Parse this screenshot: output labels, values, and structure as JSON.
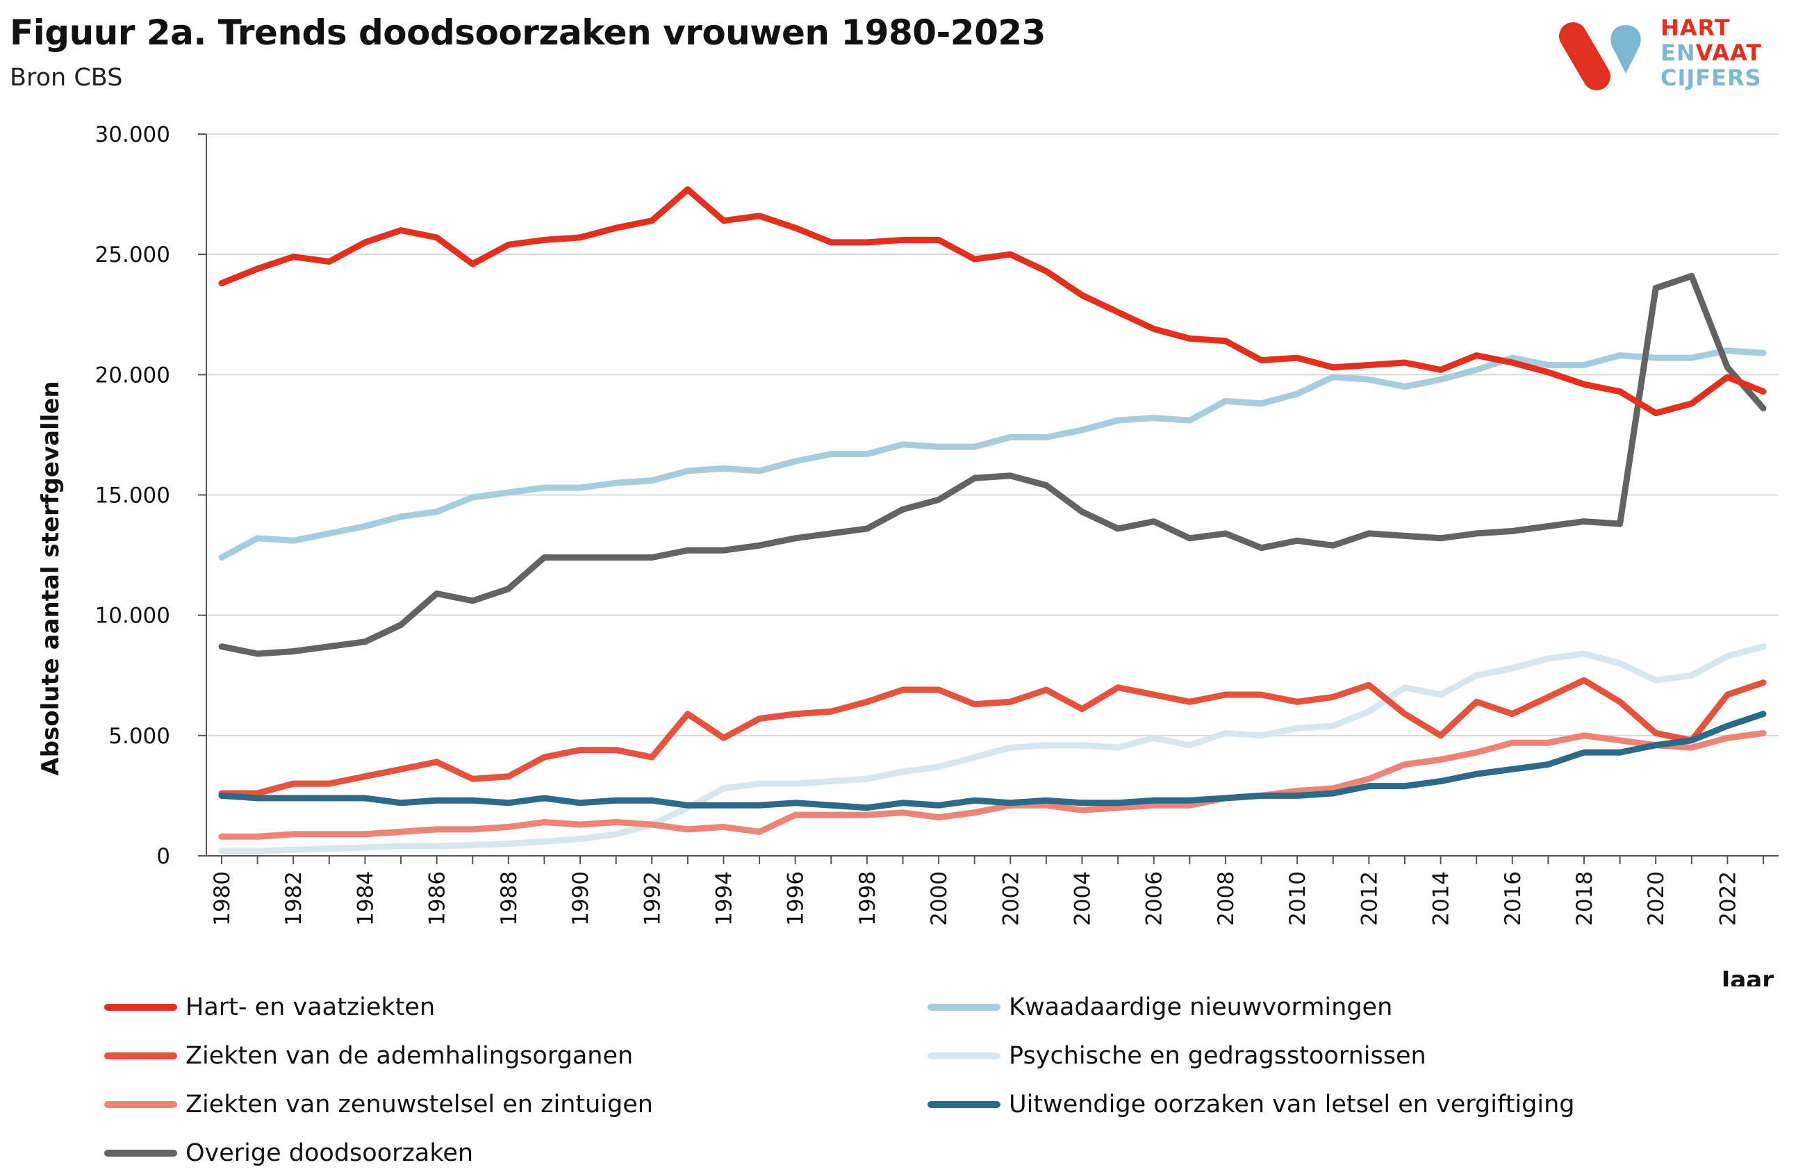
{
  "header": {
    "title": "Figuur 2a. Trends doodsoorzaken vrouwen 1980-2023",
    "subtitle": "Bron CBS"
  },
  "logo": {
    "line1": "HART",
    "line2a": "EN",
    "line2b": "VAAT",
    "line3": "CIJFERS",
    "colors": {
      "red": "#e2301f",
      "blue": "#7db8d3"
    }
  },
  "chart_data": {
    "type": "line",
    "title": "Figuur 2a. Trends doodsoorzaken vrouwen 1980-2023",
    "subtitle": "Bron CBS",
    "xlabel": "Jaar",
    "ylabel": "Absolute aantal sterfgevallen",
    "ylim": [
      0,
      30000
    ],
    "xlim": [
      1980,
      2023
    ],
    "yticks": [
      0,
      5000,
      10000,
      15000,
      20000,
      25000,
      30000
    ],
    "ytick_labels": [
      "0",
      "5.000",
      "10.000",
      "15.000",
      "20.000",
      "25.000",
      "30.000"
    ],
    "xtick_labels": [
      "1980",
      "1982",
      "1984",
      "1986",
      "1988",
      "1990",
      "1992",
      "1994",
      "1996",
      "1998",
      "2000",
      "2002",
      "2004",
      "2006",
      "2008",
      "2010",
      "2012",
      "2014",
      "2016",
      "2018",
      "2020",
      "2022"
    ],
    "grid": "horizontal",
    "legend_position": "bottom",
    "x": [
      1980,
      1981,
      1982,
      1983,
      1984,
      1985,
      1986,
      1987,
      1988,
      1989,
      1990,
      1991,
      1992,
      1993,
      1994,
      1995,
      1996,
      1997,
      1998,
      1999,
      2000,
      2001,
      2002,
      2003,
      2004,
      2005,
      2006,
      2007,
      2008,
      2009,
      2010,
      2011,
      2012,
      2013,
      2014,
      2015,
      2016,
      2017,
      2018,
      2019,
      2020,
      2021,
      2022,
      2023
    ],
    "series": [
      {
        "name": "Hart- en vaatziekten",
        "color": "#e2301f",
        "values": [
          23800,
          24400,
          24900,
          24700,
          25500,
          26000,
          25700,
          24600,
          25400,
          25600,
          25700,
          26100,
          26400,
          27700,
          26400,
          26600,
          26100,
          25500,
          25500,
          25600,
          25600,
          24800,
          25000,
          24300,
          23300,
          22600,
          21900,
          21500,
          21400,
          20600,
          20700,
          20300,
          20400,
          20500,
          20200,
          20800,
          20500,
          20100,
          19600,
          19300,
          18400,
          18800,
          19900,
          19300
        ]
      },
      {
        "name": "Kwaadaardige nieuwvormingen",
        "color": "#a7ccdf",
        "values": [
          12400,
          13200,
          13100,
          13400,
          13700,
          14100,
          14300,
          14900,
          15100,
          15300,
          15300,
          15500,
          15600,
          16000,
          16100,
          16000,
          16400,
          16700,
          16700,
          17100,
          17000,
          17000,
          17400,
          17400,
          17700,
          18100,
          18200,
          18100,
          18900,
          18800,
          19200,
          19900,
          19800,
          19500,
          19800,
          20200,
          20700,
          20400,
          20400,
          20800,
          20700,
          20700,
          21000,
          20900
        ]
      },
      {
        "name": "Ziekten van de ademhalingsorganen",
        "color": "#e5533f",
        "values": [
          2600,
          2600,
          3000,
          3000,
          3300,
          3600,
          3900,
          3200,
          3300,
          4100,
          4400,
          4400,
          4100,
          5900,
          4900,
          5700,
          5900,
          6000,
          6400,
          6900,
          6900,
          6300,
          6400,
          6900,
          6100,
          7000,
          6700,
          6400,
          6700,
          6700,
          6400,
          6600,
          7100,
          5900,
          5000,
          6400,
          5900,
          6600,
          7300,
          6400,
          5100,
          4800,
          6700,
          7200
        ]
      },
      {
        "name": "Psychische en gedragsstoornissen",
        "color": "#d6e7f0",
        "values": [
          200,
          200,
          250,
          300,
          350,
          400,
          400,
          450,
          500,
          600,
          700,
          900,
          1300,
          2000,
          2800,
          3000,
          3000,
          3100,
          3200,
          3500,
          3700,
          4100,
          4500,
          4600,
          4600,
          4500,
          4900,
          4600,
          5100,
          5000,
          5300,
          5400,
          6000,
          7000,
          6700,
          7500,
          7800,
          8200,
          8400,
          8000,
          7300,
          7500,
          8300,
          8700
        ]
      },
      {
        "name": "Ziekten van zenuwstelsel en zintuigen",
        "color": "#ec8577",
        "values": [
          800,
          800,
          900,
          900,
          900,
          1000,
          1100,
          1100,
          1200,
          1400,
          1300,
          1400,
          1300,
          1100,
          1200,
          1000,
          1700,
          1700,
          1700,
          1800,
          1600,
          1800,
          2100,
          2100,
          1900,
          2000,
          2100,
          2100,
          2400,
          2500,
          2700,
          2800,
          3200,
          3800,
          4000,
          4300,
          4700,
          4700,
          5000,
          4800,
          4600,
          4500,
          4900,
          5100
        ]
      },
      {
        "name": "Uitwendige oorzaken van letsel en vergiftiging",
        "color": "#2d6a8a",
        "values": [
          2500,
          2400,
          2400,
          2400,
          2400,
          2200,
          2300,
          2300,
          2200,
          2400,
          2200,
          2300,
          2300,
          2100,
          2100,
          2100,
          2200,
          2100,
          2000,
          2200,
          2100,
          2300,
          2200,
          2300,
          2200,
          2200,
          2300,
          2300,
          2400,
          2500,
          2500,
          2600,
          2900,
          2900,
          3100,
          3400,
          3600,
          3800,
          4300,
          4300,
          4600,
          4800,
          5400,
          5900
        ]
      },
      {
        "name": "Overige doodsoorzaken",
        "color": "#636363",
        "values": [
          8700,
          8400,
          8500,
          8700,
          8900,
          9600,
          10900,
          10600,
          11100,
          12400,
          12400,
          12400,
          12400,
          12700,
          12700,
          12900,
          13200,
          13400,
          13600,
          14400,
          14800,
          15700,
          15800,
          15400,
          14300,
          13600,
          13900,
          13200,
          13400,
          12800,
          13100,
          12900,
          13400,
          13300,
          13200,
          13400,
          13500,
          13700,
          13900,
          13800,
          23600,
          24100,
          20300,
          18600
        ]
      }
    ]
  }
}
